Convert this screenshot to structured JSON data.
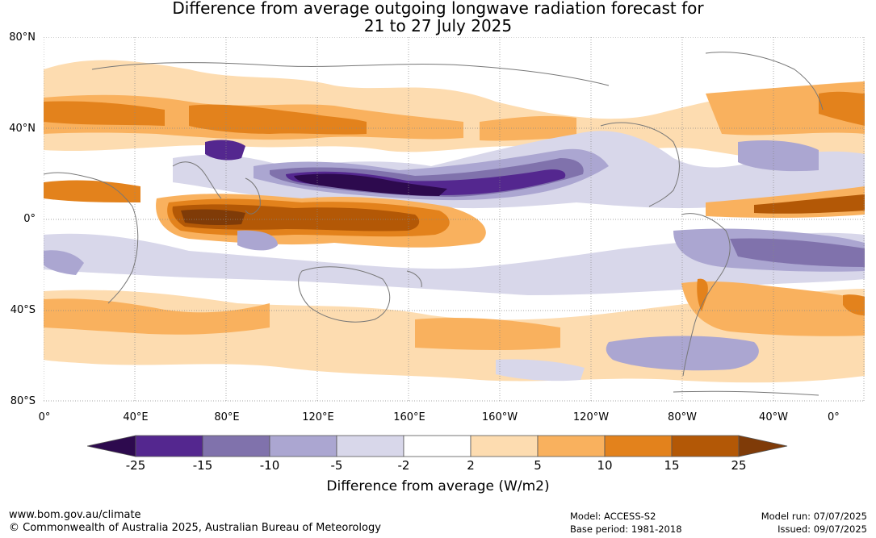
{
  "title": {
    "line1": "Difference from average outgoing longwave radiation forecast for",
    "line2": "21 to 27 July 2025"
  },
  "map": {
    "latitude_labels": [
      "80°N",
      "40°N",
      "0°",
      "40°S",
      "80°S"
    ],
    "longitude_labels": [
      "0°",
      "40°E",
      "80°E",
      "120°E",
      "160°E",
      "160°W",
      "120°W",
      "80°W",
      "40°W",
      "0°"
    ]
  },
  "colorbar": {
    "label": "Difference from average (W/m2)",
    "ticks": [
      "-25",
      "-15",
      "-10",
      "-5",
      "-2",
      "2",
      "5",
      "10",
      "15",
      "25"
    ],
    "colors": {
      "lt_-25": "#2d0a4e",
      "-25_-15": "#54278f",
      "-15_-10": "#8072ac",
      "-10_-5": "#aba6d1",
      "-5_-2": "#d8d7ea",
      "-2_2": "#ffffff",
      "2_5": "#fddcb0",
      "5_10": "#f9b15e",
      "10_15": "#e3821c",
      "15_25": "#b35806",
      "gt_25": "#7f3b08"
    }
  },
  "footer": {
    "website": "www.bom.gov.au/climate",
    "copyright": "© Commonwealth of Australia 2025, Australian Bureau of Meteorology",
    "model": "Model: ACCESS-S2",
    "base_period": "Base period: 1981-2018",
    "model_run": "Model run: 07/07/2025",
    "issued": "Issued: 09/07/2025"
  }
}
